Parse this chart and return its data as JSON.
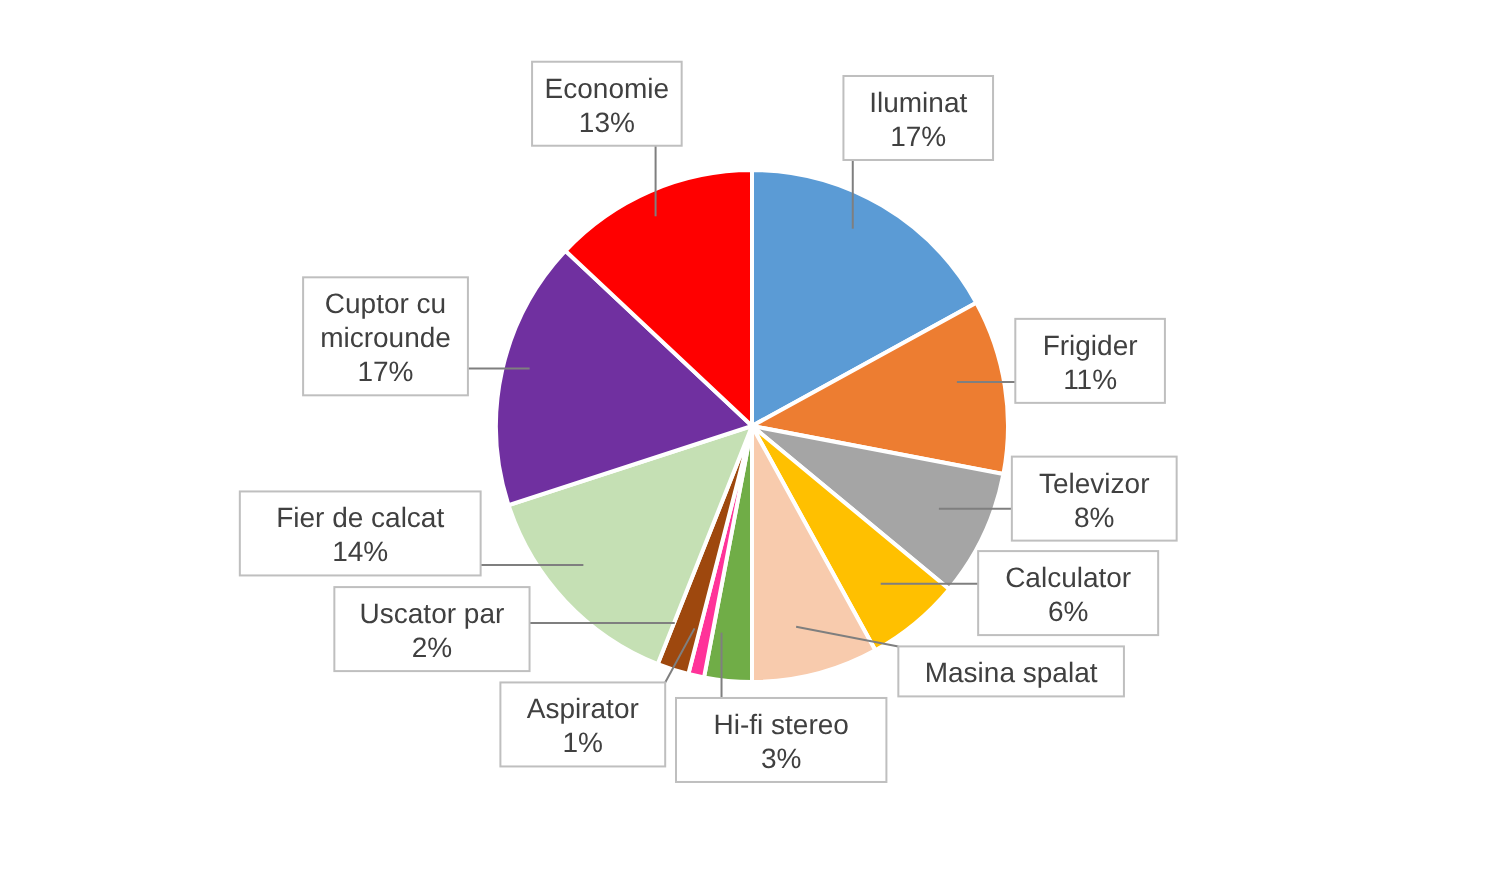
{
  "chart_data": {
    "type": "pie",
    "categories": [
      "Iluminat",
      "Frigider",
      "Televizor",
      "Calculator",
      "Masina spalat",
      "Hi-fi stereo",
      "Aspirator",
      "Uscator par",
      "Fier de calcat",
      "Cuptor cu microunde",
      "Economie"
    ],
    "values": [
      17,
      11,
      8,
      6,
      8,
      3,
      1,
      2,
      14,
      17,
      13
    ],
    "value_labels": [
      "17%",
      "11%",
      "8%",
      "6%",
      null,
      "3%",
      "1%",
      "2%",
      "14%",
      "17%",
      "13%"
    ],
    "colors": [
      "#5b9bd5",
      "#ed7d31",
      "#a5a5a5",
      "#ffc000",
      "#f8cbad",
      "#70ad47",
      "#ff3399",
      "#9e480e",
      "#c5e0b4",
      "#7030a0",
      "#ff0000"
    ]
  }
}
